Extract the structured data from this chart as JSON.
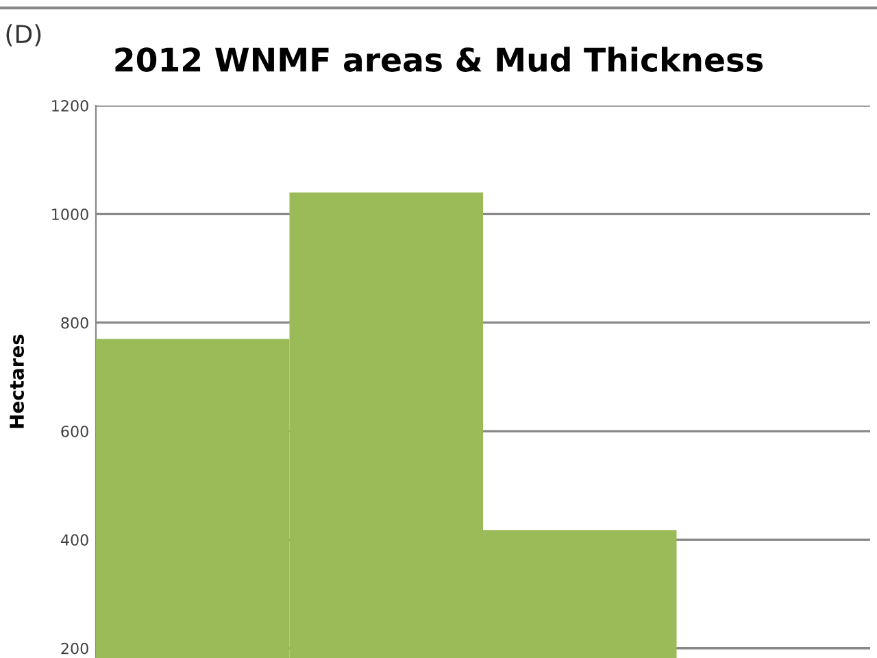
{
  "chart_data": {
    "type": "bar",
    "title": "2012 WNMF areas & Mud Thickness",
    "ylabel": "Hectares",
    "annotations": [
      "(D)"
    ],
    "categories": [
      null,
      null,
      null,
      null
    ],
    "values": [
      770,
      1040,
      418,
      null
    ],
    "color": "#9bbb59",
    "ylim": [
      182,
      1200
    ],
    "yticks": [
      200,
      400,
      600,
      800,
      1000,
      1200
    ],
    "grid": "y",
    "legend": false
  }
}
